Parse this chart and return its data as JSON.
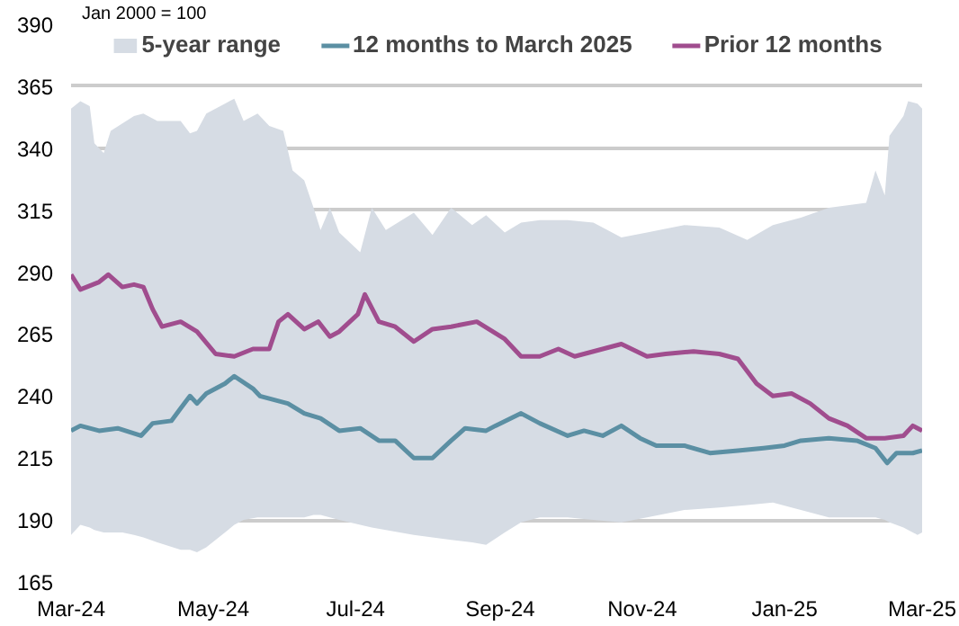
{
  "chart_data": {
    "type": "line",
    "annotations": [
      "Jan 2000 = 100"
    ],
    "xlim": [
      "2024-03-01",
      "2025-03-01"
    ],
    "xticks": [
      {
        "value": "2024-03-01",
        "label": "Mar-24"
      },
      {
        "value": "2024-05-01",
        "label": "May-24"
      },
      {
        "value": "2024-07-01",
        "label": "Jul-24"
      },
      {
        "value": "2024-09-01",
        "label": "Sep-24"
      },
      {
        "value": "2024-11-01",
        "label": "Nov-24"
      },
      {
        "value": "2025-01-01",
        "label": "Jan-25"
      },
      {
        "value": "2025-03-01",
        "label": "Mar-25"
      }
    ],
    "ylim": [
      165,
      390
    ],
    "yticks": [
      165,
      190,
      215,
      240,
      265,
      290,
      315,
      340,
      365,
      390
    ],
    "grid": "y",
    "legend": "top",
    "line_style": "solid",
    "marker": "none",
    "series": [
      {
        "name": "5-year range",
        "color": "#d6dce4",
        "values": [
          null,
          null,
          null,
          null,
          null,
          null,
          null,
          null,
          null,
          null,
          null,
          null,
          null,
          null,
          null,
          null,
          null,
          null,
          null,
          null,
          null,
          null,
          null,
          null,
          null,
          null,
          null,
          null,
          null,
          null,
          null,
          null,
          null,
          null,
          null,
          null,
          null,
          null,
          null,
          null,
          null,
          null,
          null,
          null,
          null,
          null,
          null,
          null,
          null,
          null,
          null,
          null,
          null,
          null,
          null
        ],
        "x": [
          "2024-03-01",
          "2024-03-05",
          "2024-03-09",
          "2024-03-11",
          "2024-03-15",
          "2024-03-18",
          "2024-03-23",
          "2024-03-28",
          "2024-04-01",
          "2024-04-07",
          "2024-04-17",
          "2024-04-21",
          "2024-04-24",
          "2024-04-28",
          "2024-05-06",
          "2024-05-10",
          "2024-05-14",
          "2024-05-20",
          "2024-05-25",
          "2024-05-31",
          "2024-06-04",
          "2024-06-09",
          "2024-06-13",
          "2024-06-16",
          "2024-06-20",
          "2024-06-24",
          "2024-07-03",
          "2024-07-08",
          "2024-07-14",
          "2024-07-26",
          "2024-08-03",
          "2024-08-11",
          "2024-08-20",
          "2024-08-26",
          "2024-09-03",
          "2024-09-10",
          "2024-09-18",
          "2024-09-30",
          "2024-10-11",
          "2024-10-23",
          "2024-11-03",
          "2024-11-19",
          "2024-12-04",
          "2024-12-16",
          "2024-12-27",
          "2025-01-08",
          "2025-01-20",
          "2025-02-05",
          "2025-02-09",
          "2025-02-13",
          "2025-02-15",
          "2025-02-21",
          "2025-02-23",
          "2025-02-27",
          "2025-03-01"
        ],
        "upper": [
          356,
          359,
          357,
          342,
          338,
          347,
          350,
          353,
          354,
          351,
          351,
          346,
          347,
          354,
          358,
          360,
          351,
          354,
          349,
          347,
          331,
          327,
          316,
          307,
          316,
          306,
          298,
          316,
          307,
          314,
          305,
          316,
          309,
          313,
          306,
          310,
          311,
          311,
          310,
          304,
          306,
          309,
          308,
          303,
          309,
          312,
          316,
          318,
          331,
          321,
          345,
          353,
          359,
          358,
          356
        ],
        "lower": [
          184,
          188,
          187,
          186,
          185,
          185,
          185,
          184,
          183,
          181,
          178,
          178,
          177,
          179,
          185,
          188,
          190,
          191,
          191,
          191,
          191,
          191,
          192,
          192,
          191,
          190,
          188,
          187,
          186,
          184,
          183,
          182,
          181,
          180,
          185,
          189,
          191,
          191,
          190,
          189,
          191,
          194,
          195,
          196,
          197,
          194,
          191,
          191,
          191,
          190,
          189,
          187,
          186,
          184,
          185
        ]
      },
      {
        "name": "12 months to March 2025",
        "color": "#5b8fa3",
        "x": [
          "2024-03-01",
          "2024-03-05",
          "2024-03-13",
          "2024-03-21",
          "2024-03-31",
          "2024-04-05",
          "2024-04-13",
          "2024-04-17",
          "2024-04-21",
          "2024-04-24",
          "2024-04-28",
          "2024-05-06",
          "2024-05-10",
          "2024-05-18",
          "2024-05-21",
          "2024-06-02",
          "2024-06-09",
          "2024-06-16",
          "2024-06-24",
          "2024-07-03",
          "2024-07-11",
          "2024-07-18",
          "2024-07-26",
          "2024-08-03",
          "2024-08-11",
          "2024-08-17",
          "2024-08-26",
          "2024-08-30",
          "2024-09-10",
          "2024-09-18",
          "2024-09-30",
          "2024-10-07",
          "2024-10-15",
          "2024-10-23",
          "2024-10-31",
          "2024-11-07",
          "2024-11-19",
          "2024-11-30",
          "2024-12-12",
          "2024-12-23",
          "2025-01-01",
          "2025-01-08",
          "2025-01-20",
          "2025-02-01",
          "2025-02-09",
          "2025-02-14",
          "2025-02-18",
          "2025-02-25",
          "2025-03-01"
        ],
        "values": [
          226,
          228,
          226,
          227,
          224,
          229,
          230,
          235,
          240,
          237,
          241,
          245,
          248,
          243,
          240,
          237,
          233,
          231,
          226,
          227,
          222,
          222,
          215,
          215,
          222,
          227,
          226,
          228,
          233,
          229,
          224,
          226,
          224,
          228,
          223,
          220,
          220,
          217,
          218,
          219,
          220,
          222,
          223,
          222,
          219,
          213,
          217,
          217,
          218
        ]
      },
      {
        "name": "Prior 12 months",
        "color": "#a04d8e",
        "x": [
          "2024-03-01",
          "2024-03-05",
          "2024-03-13",
          "2024-03-17",
          "2024-03-23",
          "2024-03-28",
          "2024-04-01",
          "2024-04-05",
          "2024-04-09",
          "2024-04-17",
          "2024-04-24",
          "2024-05-02",
          "2024-05-10",
          "2024-05-18",
          "2024-05-25",
          "2024-05-29",
          "2024-06-02",
          "2024-06-09",
          "2024-06-15",
          "2024-06-20",
          "2024-06-24",
          "2024-07-02",
          "2024-07-05",
          "2024-07-11",
          "2024-07-18",
          "2024-07-26",
          "2024-08-03",
          "2024-08-11",
          "2024-08-22",
          "2024-09-03",
          "2024-09-10",
          "2024-09-18",
          "2024-09-26",
          "2024-10-03",
          "2024-10-15",
          "2024-10-23",
          "2024-11-03",
          "2024-11-11",
          "2024-11-23",
          "2024-12-04",
          "2024-12-12",
          "2024-12-20",
          "2024-12-27",
          "2025-01-04",
          "2025-01-12",
          "2025-01-20",
          "2025-01-28",
          "2025-02-05",
          "2025-02-13",
          "2025-02-21",
          "2025-02-25",
          "2025-03-01"
        ],
        "values": [
          289,
          283,
          286,
          289,
          284,
          285,
          284,
          275,
          268,
          270,
          266,
          257,
          256,
          259,
          259,
          270,
          273,
          267,
          270,
          264,
          266,
          273,
          281,
          270,
          268,
          262,
          267,
          268,
          270,
          263,
          256,
          256,
          259,
          256,
          259,
          261,
          256,
          257,
          258,
          257,
          255,
          245,
          240,
          241,
          237,
          231,
          228,
          223,
          223,
          224,
          228,
          226
        ]
      }
    ]
  }
}
